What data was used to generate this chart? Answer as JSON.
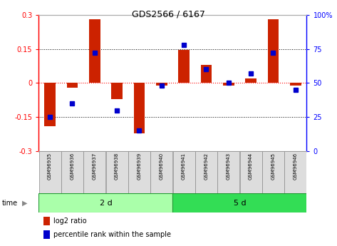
{
  "title": "GDS2566 / 6167",
  "samples": [
    "GSM96935",
    "GSM96936",
    "GSM96937",
    "GSM96938",
    "GSM96939",
    "GSM96940",
    "GSM96941",
    "GSM96942",
    "GSM96943",
    "GSM96944",
    "GSM96945",
    "GSM96946"
  ],
  "log2_ratio": [
    -0.19,
    -0.02,
    0.28,
    -0.07,
    -0.22,
    -0.01,
    0.145,
    0.08,
    -0.01,
    0.02,
    0.28,
    -0.01
  ],
  "pct_rank": [
    25,
    35,
    72,
    30,
    15,
    48,
    78,
    60,
    50,
    57,
    72,
    45
  ],
  "groups": [
    {
      "label": "2 d",
      "start": 0,
      "end": 6,
      "color": "#AAFFAA"
    },
    {
      "label": "5 d",
      "start": 6,
      "end": 12,
      "color": "#33DD55"
    }
  ],
  "group_time_label": "time",
  "ylim": [
    -0.3,
    0.3
  ],
  "pct_ylim": [
    0,
    100
  ],
  "y_ticks": [
    -0.3,
    -0.15,
    0.0,
    0.15,
    0.3
  ],
  "pct_ticks": [
    0,
    25,
    50,
    75,
    100
  ],
  "hline_color": "#FF0000",
  "bar_color": "#CC2200",
  "dot_color": "#0000CC",
  "dotted_color": "#555555",
  "bg_color": "#FFFFFF",
  "plot_bg": "#FFFFFF",
  "legend_bar_label": "log2 ratio",
  "legend_dot_label": "percentile rank within the sample",
  "bar_width": 0.5
}
